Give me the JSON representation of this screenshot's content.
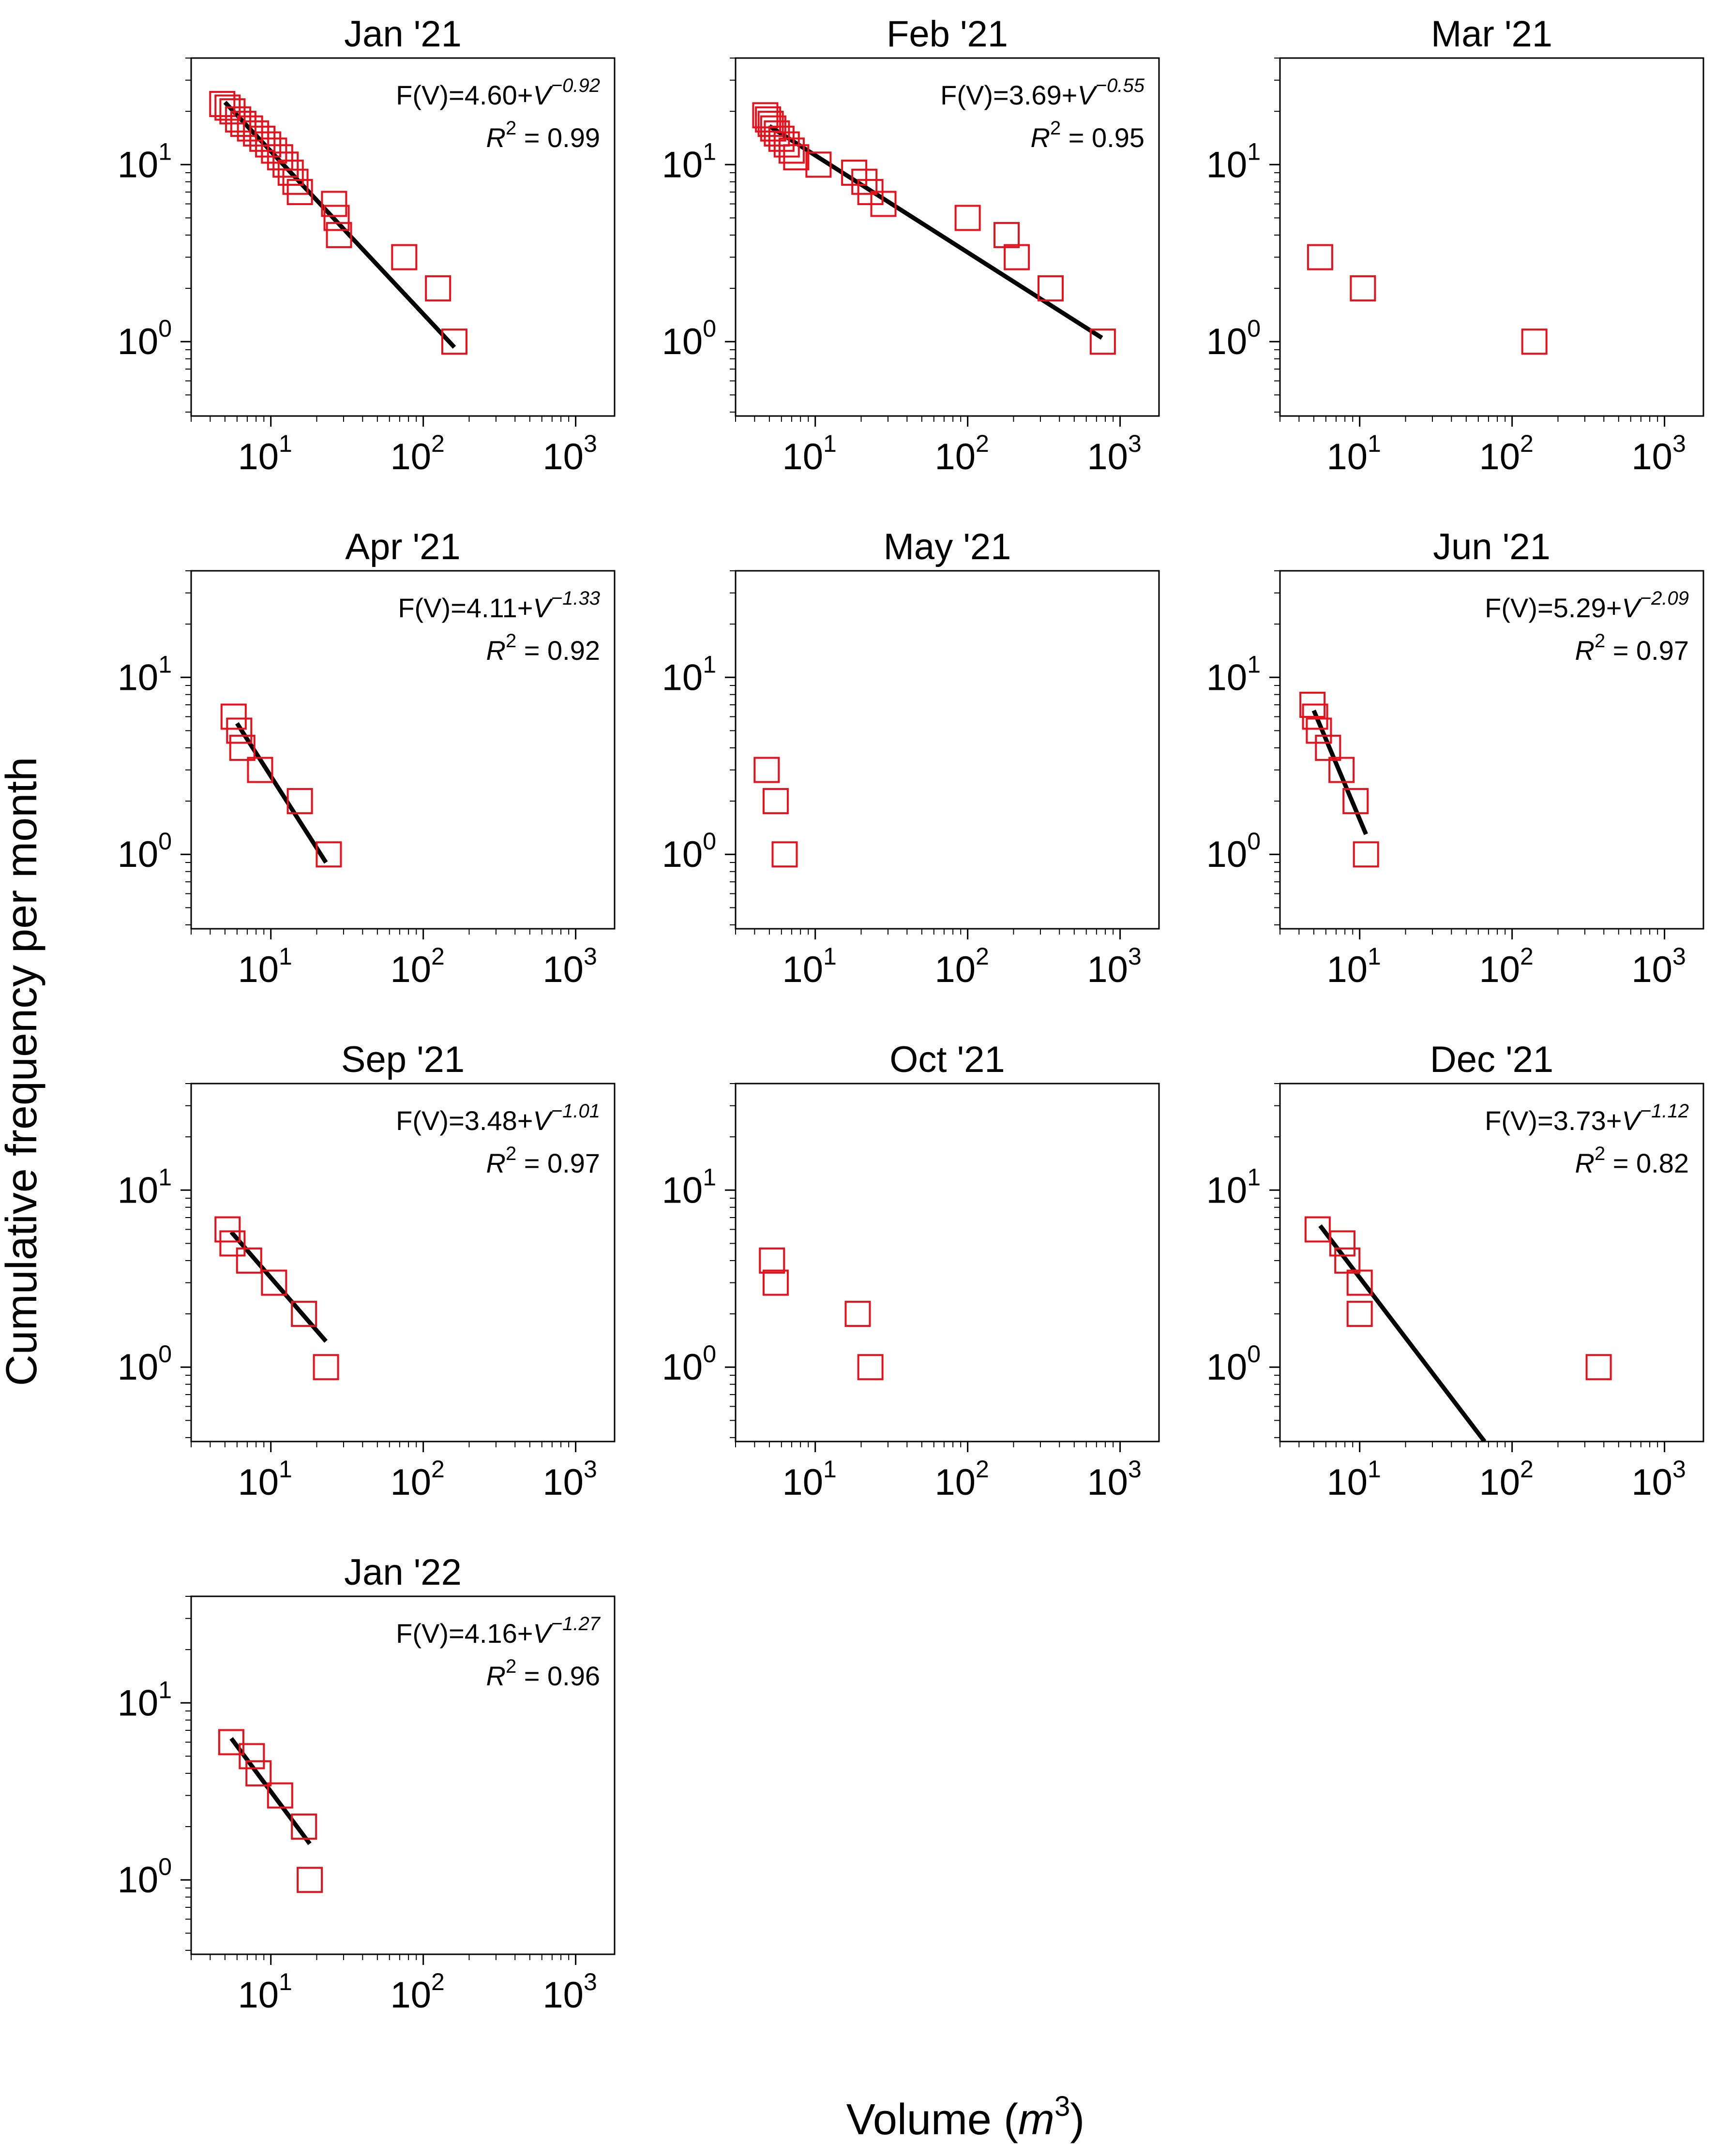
{
  "figure": {
    "ylabel": "Cumulative frequency per month",
    "xlabel_prefix": "Volume (",
    "xlabel_var": "m",
    "xlabel_exp": "3",
    "xlabel_suffix": ")"
  },
  "chart_data": {
    "type": "scatter",
    "xscale": "log",
    "yscale": "log",
    "xlim": [
      3,
      1800
    ],
    "ylim": [
      0.38,
      40
    ],
    "x_ticks": [
      10,
      100,
      1000
    ],
    "x_tick_labels": [
      {
        "base": "10",
        "exp": "1"
      },
      {
        "base": "10",
        "exp": "2"
      },
      {
        "base": "10",
        "exp": "3"
      }
    ],
    "y_ticks": [
      1,
      10
    ],
    "y_tick_labels": [
      {
        "base": "10",
        "exp": "0"
      },
      {
        "base": "10",
        "exp": "1"
      }
    ],
    "marker": "open-square",
    "marker_color": "#e8101a",
    "fit_color": "#000000",
    "panels": [
      {
        "title": "Jan '21",
        "eq_main": "F(V)=4.60+",
        "eq_var": "V",
        "eq_exp": "−0.92",
        "r2_label": "R",
        "r2_exp": "2",
        "r2_value": " = 0.99",
        "points": [
          [
            4.8,
            22
          ],
          [
            5.2,
            21
          ],
          [
            5.6,
            20
          ],
          [
            6.1,
            18
          ],
          [
            6.6,
            17
          ],
          [
            7.3,
            16
          ],
          [
            8,
            15
          ],
          [
            8.8,
            14
          ],
          [
            9.6,
            13
          ],
          [
            10.5,
            12
          ],
          [
            11.5,
            11
          ],
          [
            12.5,
            10
          ],
          [
            13.5,
            9
          ],
          [
            14.5,
            8
          ],
          [
            15.5,
            7
          ],
          [
            26,
            6
          ],
          [
            27,
            5
          ],
          [
            28,
            4
          ],
          [
            75,
            3
          ],
          [
            125,
            2
          ],
          [
            160,
            1
          ]
        ],
        "fit": [
          [
            5,
            22.5
          ],
          [
            160,
            0.93
          ]
        ]
      },
      {
        "title": "Feb '21",
        "eq_main": "F(V)=3.69+",
        "eq_var": "V",
        "eq_exp": "−0.55",
        "r2_label": "R",
        "r2_exp": "2",
        "r2_value": " = 0.95",
        "points": [
          [
            4.7,
            19
          ],
          [
            4.9,
            18
          ],
          [
            5.1,
            17
          ],
          [
            5.3,
            16
          ],
          [
            5.6,
            15
          ],
          [
            6,
            14
          ],
          [
            6.5,
            13
          ],
          [
            7,
            12
          ],
          [
            7.5,
            11
          ],
          [
            10.5,
            10
          ],
          [
            18,
            9
          ],
          [
            21,
            8
          ],
          [
            23,
            7
          ],
          [
            28,
            6
          ],
          [
            100,
            5
          ],
          [
            180,
            4
          ],
          [
            210,
            3
          ],
          [
            350,
            2
          ],
          [
            770,
            1
          ]
        ],
        "fit": [
          [
            5,
            16.5
          ],
          [
            760,
            1.05
          ]
        ]
      },
      {
        "title": "Mar '21",
        "points": [
          [
            5.5,
            3
          ],
          [
            10.5,
            2
          ],
          [
            140,
            1
          ]
        ]
      },
      {
        "title": "Apr '21",
        "eq_main": "F(V)=4.11+",
        "eq_var": "V",
        "eq_exp": "−1.33",
        "r2_label": "R",
        "r2_exp": "2",
        "r2_value": " = 0.92",
        "points": [
          [
            5.7,
            6
          ],
          [
            6.2,
            5
          ],
          [
            6.5,
            4
          ],
          [
            8.5,
            3
          ],
          [
            15.5,
            2
          ],
          [
            24,
            1
          ]
        ],
        "fit": [
          [
            6,
            5.5
          ],
          [
            23,
            0.9
          ]
        ]
      },
      {
        "title": "May '21",
        "points": [
          [
            4.8,
            3
          ],
          [
            5.5,
            2
          ],
          [
            6.3,
            1
          ]
        ]
      },
      {
        "title": "Jun '21",
        "eq_main": "F(V)=5.29+",
        "eq_var": "V",
        "eq_exp": "−2.09",
        "r2_label": "R",
        "r2_exp": "2",
        "r2_value": " = 0.97",
        "points": [
          [
            4.9,
            7
          ],
          [
            5.1,
            6
          ],
          [
            5.4,
            5
          ],
          [
            6.2,
            4
          ],
          [
            7.6,
            3
          ],
          [
            9.4,
            2
          ],
          [
            11,
            1
          ]
        ],
        "fit": [
          [
            5,
            6.5
          ],
          [
            11,
            1.3
          ]
        ]
      },
      {
        "title": "Sep '21",
        "eq_main": "F(V)=3.48+",
        "eq_var": "V",
        "eq_exp": "−1.01",
        "r2_label": "R",
        "r2_exp": "2",
        "r2_value": " = 0.97",
        "points": [
          [
            5.2,
            6
          ],
          [
            5.6,
            5
          ],
          [
            7.2,
            4
          ],
          [
            10.5,
            3
          ],
          [
            16.5,
            2
          ],
          [
            23,
            1
          ]
        ],
        "fit": [
          [
            5.5,
            5.8
          ],
          [
            23,
            1.4
          ]
        ]
      },
      {
        "title": "Oct '21",
        "points": [
          [
            5.2,
            4
          ],
          [
            5.5,
            3
          ],
          [
            19,
            2
          ],
          [
            23,
            1
          ]
        ]
      },
      {
        "title": "Dec '21",
        "eq_main": "F(V)=3.73+",
        "eq_var": "V",
        "eq_exp": "−1.12",
        "r2_label": "R",
        "r2_exp": "2",
        "r2_value": " = 0.82",
        "points": [
          [
            5.3,
            6
          ],
          [
            7.7,
            5
          ],
          [
            8.3,
            4
          ],
          [
            10,
            3
          ],
          [
            10,
            2
          ],
          [
            370,
            1
          ]
        ],
        "fit": [
          [
            5.5,
            6.3
          ],
          [
            66,
            0.38
          ]
        ]
      },
      {
        "title": "Jan '22",
        "eq_main": "F(V)=4.16+",
        "eq_var": "V",
        "eq_exp": "−1.27",
        "r2_label": "R",
        "r2_exp": "2",
        "r2_value": " = 0.96",
        "points": [
          [
            5.5,
            6
          ],
          [
            7.5,
            5
          ],
          [
            8.3,
            4
          ],
          [
            11.5,
            3
          ],
          [
            16.5,
            2
          ],
          [
            18,
            1
          ]
        ],
        "fit": [
          [
            5.5,
            6.3
          ],
          [
            18,
            1.6
          ]
        ]
      }
    ]
  }
}
